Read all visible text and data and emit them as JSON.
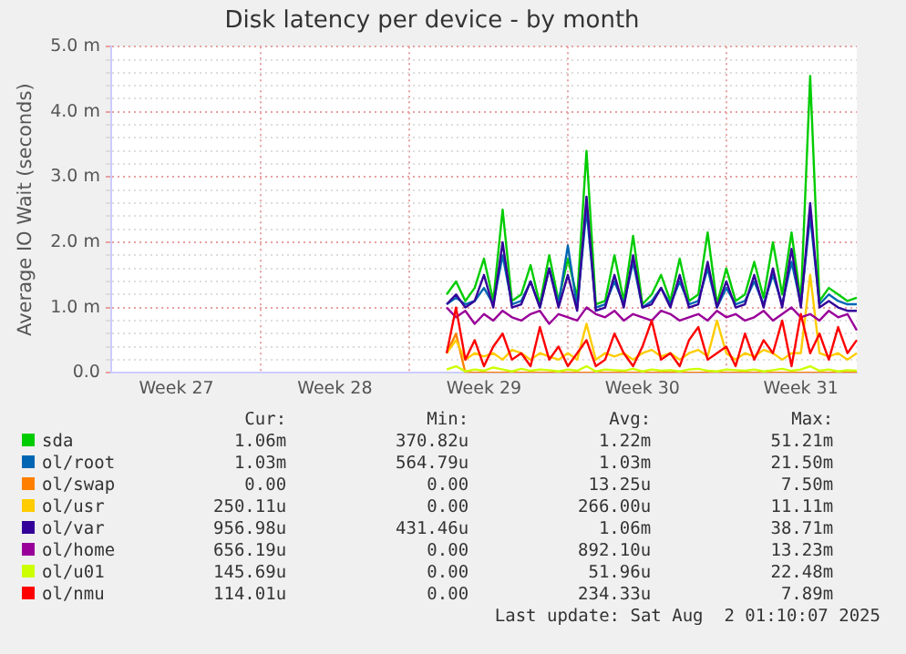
{
  "chart_data": {
    "type": "line",
    "title": "Disk latency per device - by month",
    "ylabel": "Average IO Wait (seconds)",
    "categories": [
      null,
      null,
      null,
      null,
      null,
      null,
      null,
      "Week 27",
      null,
      null,
      null,
      null,
      null,
      null,
      null,
      null,
      null,
      null,
      null,
      null,
      null,
      null,
      null,
      null,
      "Week 28",
      null,
      null,
      null,
      null,
      null,
      null,
      null,
      null,
      null,
      null,
      null,
      null,
      null,
      null,
      null,
      "Week 29",
      null,
      null,
      null,
      null,
      null,
      null,
      null,
      null,
      null,
      null,
      null,
      null,
      null,
      null,
      null,
      null,
      "Week 30",
      null,
      null,
      null,
      null,
      null,
      null,
      null,
      null,
      null,
      null,
      null,
      null,
      null,
      null,
      null,
      null,
      "Week 31",
      null,
      null,
      null,
      null,
      null,
      null
    ],
    "ylim": [
      0,
      5
    ],
    "yticks": [
      {
        "value": 0,
        "label": "0.0"
      },
      {
        "value": 0.2,
        "label": null
      },
      {
        "value": 0.4,
        "label": null
      },
      {
        "value": 0.6,
        "label": null
      },
      {
        "value": 0.8,
        "label": null
      },
      {
        "value": 1,
        "label": "1.0 m"
      },
      {
        "value": 1.2,
        "label": null
      },
      {
        "value": 1.4,
        "label": null
      },
      {
        "value": 1.6,
        "label": null
      },
      {
        "value": 1.8,
        "label": null
      },
      {
        "value": 2,
        "label": "2.0 m"
      },
      {
        "value": 2.2,
        "label": null
      },
      {
        "value": 2.4,
        "label": null
      },
      {
        "value": 2.6,
        "label": null
      },
      {
        "value": 2.8,
        "label": null
      },
      {
        "value": 3,
        "label": "3.0 m"
      },
      {
        "value": 3.2,
        "label": null
      },
      {
        "value": 3.4,
        "label": null
      },
      {
        "value": 3.6,
        "label": null
      },
      {
        "value": 3.8,
        "label": null
      },
      {
        "value": 4,
        "label": "4.0 m"
      },
      {
        "value": 4.2,
        "label": null
      },
      {
        "value": 4.4,
        "label": null
      },
      {
        "value": 4.6,
        "label": null
      },
      {
        "value": 4.8,
        "label": null
      },
      {
        "value": 5,
        "label": "5.0 m"
      }
    ],
    "grid": true,
    "legend": "bottom",
    "marker": "none",
    "line_style": "solid",
    "series": [
      {
        "name": "sda",
        "color": "#00cc00",
        "values": [
          null,
          null,
          null,
          null,
          null,
          null,
          null,
          null,
          null,
          null,
          null,
          null,
          null,
          null,
          null,
          null,
          null,
          null,
          null,
          null,
          null,
          null,
          null,
          null,
          null,
          null,
          null,
          null,
          null,
          null,
          null,
          null,
          null,
          null,
          null,
          null,
          1.2,
          1.4,
          1.1,
          1.3,
          1.75,
          1.1,
          2.5,
          1.1,
          1.2,
          1.65,
          1.05,
          1.8,
          1.1,
          1.75,
          1.15,
          3.4,
          1.05,
          1.1,
          1.8,
          1.1,
          2.1,
          1.05,
          1.2,
          1.5,
          1.1,
          1.75,
          1.1,
          1.2,
          2.15,
          1.05,
          1.6,
          1.1,
          1.2,
          1.7,
          1.15,
          2.0,
          1.2,
          2.15,
          1.1,
          4.55,
          1.1,
          1.3,
          1.2,
          1.1,
          1.15
        ]
      },
      {
        "name": "ol/root",
        "color": "#0066b3",
        "values": [
          null,
          null,
          null,
          null,
          null,
          null,
          null,
          null,
          null,
          null,
          null,
          null,
          null,
          null,
          null,
          null,
          null,
          null,
          null,
          null,
          null,
          null,
          null,
          null,
          null,
          null,
          null,
          null,
          null,
          null,
          null,
          null,
          null,
          null,
          null,
          null,
          1.05,
          1.15,
          1.05,
          1.1,
          1.3,
          1.05,
          1.8,
          1.05,
          1.1,
          1.4,
          1.0,
          1.6,
          1.05,
          1.95,
          1.0,
          2.5,
          1.0,
          1.05,
          1.4,
          1.05,
          1.7,
          1.0,
          1.1,
          1.3,
          1.05,
          1.4,
          1.05,
          1.1,
          1.6,
          1.0,
          1.3,
          1.05,
          1.1,
          1.4,
          1.05,
          1.5,
          1.05,
          1.7,
          1.05,
          2.4,
          1.05,
          1.2,
          1.1,
          1.05,
          1.05
        ]
      },
      {
        "name": "ol/swap",
        "color": "#ff8000",
        "values": [
          null,
          null,
          null,
          null,
          null,
          null,
          null,
          null,
          null,
          null,
          null,
          null,
          null,
          null,
          null,
          null,
          null,
          null,
          null,
          null,
          null,
          null,
          null,
          null,
          null,
          null,
          null,
          null,
          null,
          null,
          null,
          null,
          null,
          null,
          null,
          null,
          0.3,
          0.6,
          0,
          0,
          0,
          0,
          0,
          0,
          0,
          0,
          0,
          0,
          0,
          0,
          0,
          0,
          0,
          0,
          0,
          0,
          0,
          0,
          0,
          0,
          0,
          0,
          0,
          0,
          0,
          0,
          0,
          0,
          0,
          0,
          0,
          0,
          0,
          0,
          0,
          0,
          0,
          0,
          0,
          0,
          0
        ]
      },
      {
        "name": "ol/usr",
        "color": "#ffcc00",
        "values": [
          null,
          null,
          null,
          null,
          null,
          null,
          null,
          null,
          null,
          null,
          null,
          null,
          null,
          null,
          null,
          null,
          null,
          null,
          null,
          null,
          null,
          null,
          null,
          null,
          null,
          null,
          null,
          null,
          null,
          null,
          null,
          null,
          null,
          null,
          null,
          null,
          0.3,
          0.5,
          0.2,
          0.3,
          0.25,
          0.3,
          0.2,
          0.35,
          0.3,
          0.2,
          0.3,
          0.25,
          0.2,
          0.3,
          0.2,
          0.75,
          0.2,
          0.3,
          0.25,
          0.3,
          0.2,
          0.3,
          0.35,
          0.25,
          0.3,
          0.2,
          0.3,
          0.35,
          0.25,
          0.8,
          0.3,
          0.2,
          0.3,
          0.25,
          0.35,
          0.3,
          0.2,
          0.3,
          0.3,
          1.5,
          0.3,
          0.25,
          0.3,
          0.2,
          0.3
        ]
      },
      {
        "name": "ol/var",
        "color": "#330099",
        "values": [
          null,
          null,
          null,
          null,
          null,
          null,
          null,
          null,
          null,
          null,
          null,
          null,
          null,
          null,
          null,
          null,
          null,
          null,
          null,
          null,
          null,
          null,
          null,
          null,
          null,
          null,
          null,
          null,
          null,
          null,
          null,
          null,
          null,
          null,
          null,
          null,
          1.05,
          1.2,
          1.0,
          1.1,
          1.5,
          1.0,
          2.0,
          1.0,
          1.05,
          1.4,
          1.0,
          1.6,
          1.0,
          1.5,
          0.95,
          2.7,
          0.95,
          1.0,
          1.5,
          1.0,
          1.8,
          1.0,
          1.05,
          1.3,
          1.0,
          1.5,
          1.0,
          1.05,
          1.7,
          1.0,
          1.4,
          1.0,
          1.05,
          1.5,
          1.0,
          1.6,
          1.0,
          1.9,
          1.0,
          2.6,
          1.0,
          1.1,
          1.0,
          0.95,
          0.95
        ]
      },
      {
        "name": "ol/home",
        "color": "#990099",
        "values": [
          null,
          null,
          null,
          null,
          null,
          null,
          null,
          null,
          null,
          null,
          null,
          null,
          null,
          null,
          null,
          null,
          null,
          null,
          null,
          null,
          null,
          null,
          null,
          null,
          null,
          null,
          null,
          null,
          null,
          null,
          null,
          null,
          null,
          null,
          null,
          null,
          1.0,
          0.85,
          0.95,
          0.75,
          0.9,
          0.8,
          0.95,
          0.85,
          0.8,
          0.9,
          0.95,
          0.75,
          0.9,
          0.85,
          0.8,
          1.0,
          0.9,
          0.85,
          0.95,
          0.8,
          0.9,
          0.85,
          0.8,
          0.95,
          0.9,
          0.8,
          0.85,
          0.9,
          0.8,
          0.95,
          0.85,
          0.9,
          0.8,
          0.85,
          0.95,
          0.8,
          0.9,
          1.0,
          0.85,
          0.9,
          0.8,
          0.95,
          0.85,
          0.9,
          0.65
        ]
      },
      {
        "name": "ol/u01",
        "color": "#ccff00",
        "values": [
          null,
          null,
          null,
          null,
          null,
          null,
          null,
          null,
          null,
          null,
          null,
          null,
          null,
          null,
          null,
          null,
          null,
          null,
          null,
          null,
          null,
          null,
          null,
          null,
          null,
          null,
          null,
          null,
          null,
          null,
          null,
          null,
          null,
          null,
          null,
          null,
          0.05,
          0.1,
          0.02,
          0.05,
          0.03,
          0.08,
          0.05,
          0.02,
          0.06,
          0.03,
          0.05,
          0.04,
          0.02,
          0.05,
          0.03,
          0.1,
          0.02,
          0.05,
          0.04,
          0.03,
          0.06,
          0.02,
          0.05,
          0.03,
          0.04,
          0.02,
          0.05,
          0.06,
          0.03,
          0.02,
          0.05,
          0.04,
          0.03,
          0.05,
          0.02,
          0.04,
          0.06,
          0.03,
          0.05,
          0.1,
          0.03,
          0.05,
          0.02,
          0.04,
          0.03
        ]
      },
      {
        "name": "ol/nmu",
        "color": "#ff0000",
        "values": [
          null,
          null,
          null,
          null,
          null,
          null,
          null,
          null,
          null,
          null,
          null,
          null,
          null,
          null,
          null,
          null,
          null,
          null,
          null,
          null,
          null,
          null,
          null,
          null,
          null,
          null,
          null,
          null,
          null,
          null,
          null,
          null,
          null,
          null,
          null,
          null,
          0.3,
          1.0,
          0.2,
          0.5,
          0.1,
          0.4,
          0.6,
          0.2,
          0.3,
          0.1,
          0.7,
          0.2,
          0.4,
          0.1,
          0.3,
          0.5,
          0.1,
          0.2,
          0.6,
          0.3,
          0.1,
          0.4,
          0.8,
          0.2,
          0.3,
          0.1,
          0.5,
          0.7,
          0.2,
          0.3,
          0.4,
          0.1,
          0.6,
          0.2,
          0.5,
          0.3,
          0.8,
          0.1,
          0.9,
          0.3,
          0.6,
          0.2,
          0.7,
          0.3,
          0.5
        ]
      }
    ],
    "annotations": [
      "Cur:",
      "Min:",
      "Avg:",
      "Max:",
      "1.06m",
      "370.82u",
      "1.22m",
      "51.21m",
      "1.03m",
      "564.79u",
      "1.03m",
      "21.50m",
      "0.00",
      "0.00",
      "13.25u",
      "7.50m",
      "250.11u",
      "0.00",
      "266.00u",
      "11.11m",
      "956.98u",
      "431.46u",
      "1.06m",
      "38.71m",
      "656.19u",
      "0.00",
      "892.10u",
      "13.23m",
      "145.69u",
      "0.00",
      "51.96u",
      "22.48m",
      "114.01u",
      "0.00",
      "234.33u",
      "7.89m",
      "Last update: Sat Aug  2 01:10:07 2025"
    ]
  }
}
